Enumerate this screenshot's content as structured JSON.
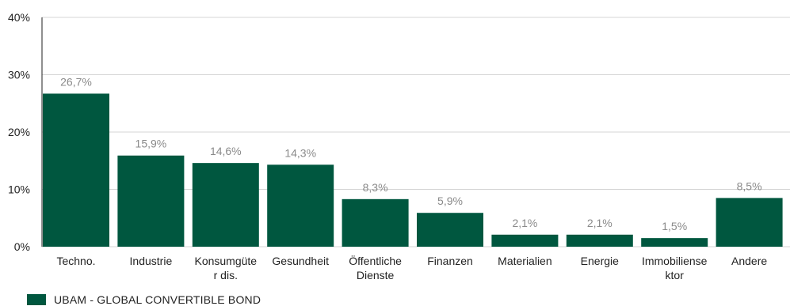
{
  "chart_data": {
    "type": "bar",
    "categories": [
      [
        "Techno."
      ],
      [
        "Industrie"
      ],
      [
        "Konsumgüte",
        "r dis."
      ],
      [
        "Gesundheit"
      ],
      [
        "Öffentliche",
        "Dienste"
      ],
      [
        "Finanzen"
      ],
      [
        "Materialien"
      ],
      [
        "Energie"
      ],
      [
        "Immobiliense",
        "ktor"
      ],
      [
        "Andere"
      ]
    ],
    "series": [
      {
        "name": "UBAM - GLOBAL CONVERTIBLE BOND",
        "values": [
          26.7,
          15.9,
          14.6,
          14.3,
          8.3,
          5.9,
          2.1,
          2.1,
          1.5,
          8.5
        ],
        "value_labels": [
          "26,7%",
          "15,9%",
          "14,6%",
          "14,3%",
          "8,3%",
          "5,9%",
          "2,1%",
          "2,1%",
          "1,5%",
          "8,5%"
        ]
      }
    ],
    "yticks": [
      0,
      10,
      20,
      30,
      40
    ],
    "ytick_labels": [
      "0%",
      "10%",
      "20%",
      "30%",
      "40%"
    ],
    "ylim": [
      0,
      40
    ],
    "grid": true,
    "legend_position": "bottom-left",
    "colors": {
      "bar": "#00573f",
      "grid": "#d4d4d4",
      "axis": "#222222"
    }
  }
}
